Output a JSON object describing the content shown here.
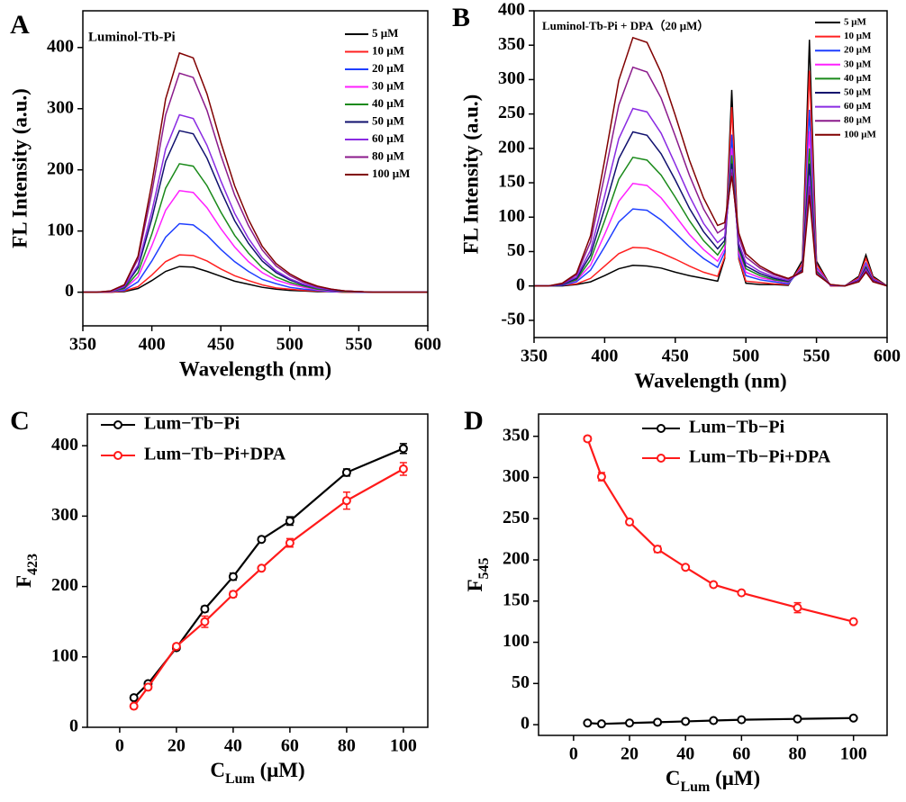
{
  "chart_data": [
    {
      "type": "line",
      "panel": "A",
      "title": "Luminol-Tb-Pi",
      "xlabel": "Wavelength (nm)",
      "ylabel": "FL Intensity (a.u.)",
      "xlim": [
        350,
        600
      ],
      "xticks": [
        350,
        400,
        450,
        500,
        550,
        600
      ],
      "ylim": [
        -55,
        460
      ],
      "yticks": [
        0,
        100,
        200,
        300,
        400
      ],
      "legend": "upper right",
      "x": [
        350,
        360,
        370,
        380,
        390,
        400,
        410,
        420,
        430,
        440,
        450,
        460,
        470,
        480,
        490,
        500,
        510,
        520,
        530,
        540,
        550,
        560,
        570,
        580,
        590,
        600
      ],
      "series": [
        {
          "name": "5 μM",
          "color": "#000000",
          "values": [
            0,
            0,
            0,
            1,
            6,
            19,
            34,
            42,
            41,
            34,
            26,
            18,
            13,
            8,
            5,
            3,
            2,
            1,
            1,
            0,
            0,
            0,
            0,
            0,
            0,
            0
          ]
        },
        {
          "name": "10 μM",
          "color": "#ff2020",
          "values": [
            0,
            0,
            0,
            2,
            9,
            28,
            50,
            61,
            60,
            51,
            38,
            27,
            19,
            12,
            7,
            5,
            3,
            2,
            1,
            0,
            0,
            0,
            0,
            0,
            0,
            0
          ]
        },
        {
          "name": "20 μM",
          "color": "#1f3fff",
          "values": [
            0,
            0,
            1,
            3,
            17,
            51,
            90,
            112,
            110,
            93,
            70,
            50,
            34,
            21,
            14,
            8,
            5,
            3,
            1,
            1,
            0,
            0,
            0,
            0,
            0,
            0
          ]
        },
        {
          "name": "30 μM",
          "color": "#ff20ff",
          "values": [
            0,
            0,
            1,
            5,
            25,
            76,
            134,
            166,
            163,
            138,
            104,
            74,
            50,
            32,
            20,
            13,
            8,
            4,
            2,
            1,
            1,
            0,
            0,
            0,
            0,
            0
          ]
        },
        {
          "name": "40 μM",
          "color": "#1a8a1a",
          "values": [
            0,
            0,
            1,
            6,
            32,
            95,
            170,
            210,
            206,
            174,
            131,
            93,
            64,
            40,
            25,
            16,
            10,
            5,
            3,
            1,
            1,
            0,
            0,
            0,
            0,
            0
          ]
        },
        {
          "name": "50 μM",
          "color": "#10106e",
          "values": [
            0,
            0,
            1,
            8,
            40,
            120,
            214,
            264,
            259,
            219,
            166,
            117,
            80,
            51,
            32,
            20,
            12,
            7,
            3,
            2,
            1,
            0,
            0,
            0,
            0,
            0
          ]
        },
        {
          "name": "60 μM",
          "color": "#8a2be2",
          "values": [
            0,
            0,
            1,
            9,
            44,
            132,
            234,
            290,
            284,
            240,
            182,
            129,
            88,
            56,
            35,
            22,
            13,
            7,
            4,
            2,
            1,
            0,
            0,
            0,
            0,
            0
          ]
        },
        {
          "name": "80 μM",
          "color": "#8b1a8b",
          "values": [
            0,
            0,
            2,
            11,
            54,
            163,
            290,
            358,
            351,
            297,
            224,
            159,
            109,
            69,
            43,
            27,
            16,
            9,
            5,
            2,
            1,
            0,
            0,
            0,
            0,
            0
          ]
        },
        {
          "name": "100 μM",
          "color": "#800000",
          "values": [
            0,
            0,
            2,
            12,
            59,
            178,
            316,
            391,
            383,
            324,
            245,
            174,
            119,
            75,
            47,
            30,
            18,
            10,
            5,
            2,
            1,
            0,
            0,
            0,
            0,
            0
          ]
        }
      ]
    },
    {
      "type": "line",
      "panel": "B",
      "title": "Luminol-Tb-Pi + DPA（20 μM）",
      "xlabel": "Wavelength (nm)",
      "ylabel": "FL Intensity (a.u.)",
      "xlim": [
        350,
        600
      ],
      "xticks": [
        350,
        400,
        450,
        500,
        550,
        600
      ],
      "ylim": [
        -75,
        400
      ],
      "yticks": [
        -50,
        0,
        50,
        100,
        150,
        200,
        250,
        300,
        350,
        400
      ],
      "legend": "upper right",
      "x": [
        350,
        360,
        370,
        380,
        390,
        400,
        410,
        420,
        430,
        440,
        450,
        460,
        470,
        480,
        485,
        490,
        495,
        500,
        510,
        520,
        530,
        540,
        545,
        550,
        560,
        570,
        580,
        585,
        590,
        600
      ],
      "series": [
        {
          "name": "5 μM",
          "color": "#000000",
          "values": [
            0,
            0,
            0,
            2,
            6,
            15,
            25,
            30,
            29,
            26,
            20,
            15,
            11,
            7,
            40,
            285,
            39,
            4,
            2,
            2,
            1,
            37,
            358,
            36,
            0,
            0,
            14,
            45,
            14,
            0
          ]
        },
        {
          "name": "10 μM",
          "color": "#ff2020",
          "values": [
            0,
            0,
            1,
            3,
            11,
            29,
            47,
            56,
            55,
            48,
            39,
            29,
            20,
            14,
            42,
            260,
            40,
            7,
            5,
            3,
            2,
            32,
            313,
            32,
            0,
            0,
            12,
            40,
            12,
            0
          ]
        },
        {
          "name": "20 μM",
          "color": "#1f3fff",
          "values": [
            0,
            0,
            1,
            6,
            23,
            57,
            93,
            112,
            110,
            96,
            77,
            57,
            40,
            27,
            49,
            220,
            44,
            15,
            9,
            6,
            3,
            28,
            256,
            27,
            1,
            0,
            10,
            33,
            10,
            0
          ]
        },
        {
          "name": "30 μM",
          "color": "#ff20ff",
          "values": [
            0,
            0,
            2,
            8,
            30,
            75,
            123,
            149,
            146,
            128,
            102,
            75,
            53,
            36,
            54,
            200,
            48,
            20,
            12,
            8,
            5,
            26,
            225,
            25,
            1,
            0,
            9,
            30,
            9,
            0
          ]
        },
        {
          "name": "40 μM",
          "color": "#1a8a1a",
          "values": [
            0,
            0,
            2,
            9,
            38,
            95,
            155,
            187,
            183,
            161,
            129,
            95,
            66,
            45,
            61,
            190,
            53,
            25,
            15,
            9,
            6,
            24,
            200,
            22,
            1,
            0,
            8,
            28,
            8,
            0
          ]
        },
        {
          "name": "50 μM",
          "color": "#10106e",
          "values": [
            0,
            0,
            2,
            11,
            45,
            113,
            185,
            224,
            219,
            192,
            154,
            113,
            79,
            54,
            66,
            178,
            57,
            29,
            18,
            11,
            7,
            23,
            178,
            20,
            1,
            0,
            8,
            26,
            8,
            0
          ]
        },
        {
          "name": "60 μM",
          "color": "#8a2be2",
          "values": [
            0,
            0,
            3,
            13,
            52,
            131,
            214,
            258,
            253,
            222,
            177,
            131,
            91,
            63,
            72,
            170,
            62,
            34,
            21,
            13,
            8,
            21,
            160,
            19,
            1,
            0,
            7,
            24,
            7,
            0
          ]
        },
        {
          "name": "80 μM",
          "color": "#8b1a8b",
          "values": [
            0,
            0,
            3,
            16,
            64,
            161,
            263,
            318,
            311,
            273,
            218,
            161,
            112,
            77,
            84,
            165,
            71,
            42,
            26,
            16,
            10,
            21,
            145,
            18,
            2,
            0,
            7,
            22,
            7,
            0
          ]
        },
        {
          "name": "100 μM",
          "color": "#800000",
          "values": [
            0,
            0,
            4,
            18,
            73,
            183,
            299,
            361,
            354,
            310,
            248,
            183,
            128,
            88,
            92,
            160,
            77,
            47,
            29,
            18,
            11,
            20,
            132,
            17,
            2,
            0,
            6,
            20,
            6,
            0
          ]
        }
      ]
    },
    {
      "type": "errorline",
      "panel": "C",
      "xlabel": [
        "C",
        "Lum",
        " (μM)"
      ],
      "ylabel": [
        "F",
        "423"
      ],
      "xlim": [
        -11.4,
        108.6
      ],
      "xticks": [
        0,
        20,
        40,
        60,
        80,
        100
      ],
      "ylim": [
        0,
        445
      ],
      "yticks": [
        0,
        100,
        200,
        300,
        400
      ],
      "legend": "upper left",
      "x": [
        5,
        10,
        20,
        30,
        40,
        50,
        60,
        80,
        100
      ],
      "series": [
        {
          "name": "Lum−Tb−Pi",
          "color": "#000000",
          "values": [
            42,
            62,
            113,
            168,
            214,
            267,
            293,
            362,
            396
          ],
          "errors": [
            3,
            2,
            3,
            4,
            5,
            2,
            6,
            5,
            7
          ]
        },
        {
          "name": "Lum−Tb−Pi+DPA",
          "color": "#ff1a1a",
          "values": [
            30,
            57,
            115,
            150,
            189,
            226,
            262,
            322,
            367
          ],
          "errors": [
            2,
            3,
            2,
            8,
            4,
            2,
            6,
            12,
            9
          ]
        }
      ]
    },
    {
      "type": "errorline",
      "panel": "D",
      "xlabel": [
        "C",
        "Lum",
        " (μM)"
      ],
      "ylabel": [
        "F",
        "545"
      ],
      "xlim": [
        -12.5,
        112
      ],
      "xticks": [
        0,
        20,
        40,
        60,
        80,
        100
      ],
      "ylim": [
        -13,
        377
      ],
      "yticks": [
        0,
        50,
        100,
        150,
        200,
        250,
        300,
        350
      ],
      "legend": "upper center",
      "x": [
        5,
        10,
        20,
        30,
        40,
        50,
        60,
        80,
        100
      ],
      "series": [
        {
          "name": "Lum−Tb−Pi",
          "color": "#000000",
          "values": [
            2,
            1,
            2,
            3,
            4,
            5,
            6,
            7,
            8
          ],
          "errors": [
            1,
            1,
            1,
            1,
            1,
            1,
            1,
            1,
            1
          ]
        },
        {
          "name": "Lum−Tb−Pi+DPA",
          "color": "#ff1a1a",
          "values": [
            347,
            301,
            246,
            213,
            191,
            170,
            160,
            142,
            125
          ],
          "errors": [
            3,
            5,
            2,
            4,
            2,
            2,
            2,
            6,
            2
          ]
        }
      ]
    }
  ]
}
